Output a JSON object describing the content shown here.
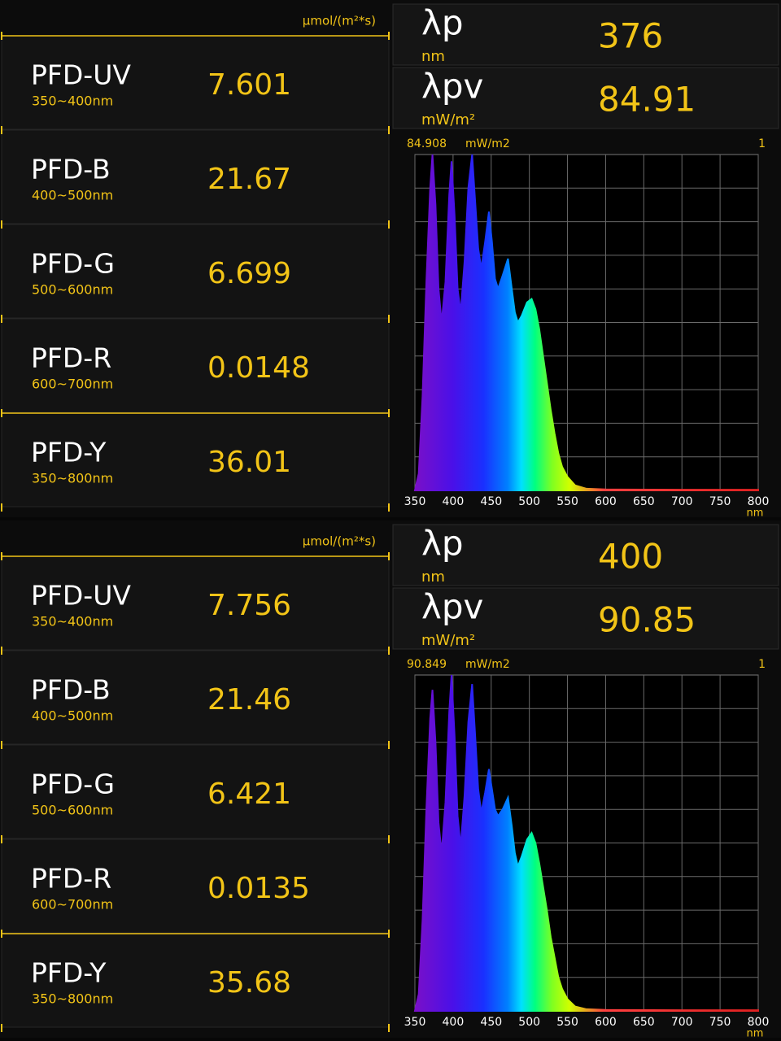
{
  "panels": [
    {
      "unit": "μmol/(m²*s)",
      "rows": [
        {
          "name": "PFD-UV",
          "range": "350~400nm",
          "value": 7.601
        },
        {
          "name": "PFD-B",
          "range": "400~500nm",
          "value": 21.67
        },
        {
          "name": "PFD-G",
          "range": "500~600nm",
          "value": 6.699
        },
        {
          "name": "PFD-R",
          "range": "600~700nm",
          "value": 0.0148
        },
        {
          "name": "PFD-Y",
          "range": "350~800nm",
          "value": 36.01
        }
      ],
      "peak_wavelength": {
        "label": "λp",
        "unit": "nm",
        "value": 376
      },
      "peak_value": {
        "label": "λpv",
        "unit": "mW/m²",
        "value": 84.91
      },
      "chart": {
        "type": "area",
        "peak_label": 84.908,
        "unit": "mW/m2",
        "x_unit": "nm",
        "x": [
          350,
          355,
          360,
          365,
          370,
          373,
          377,
          381,
          385,
          390,
          395,
          398,
          402,
          406,
          410,
          415,
          420,
          425,
          429,
          433,
          437,
          442,
          447,
          451,
          455,
          459,
          465,
          472,
          477,
          481,
          485,
          490,
          497,
          503,
          508,
          513,
          518,
          523,
          528,
          533,
          538,
          543,
          550,
          560,
          575,
          600,
          700,
          800
        ],
        "values": [
          0,
          0.05,
          0.28,
          0.62,
          0.9,
          1.0,
          0.85,
          0.6,
          0.5,
          0.62,
          0.88,
          0.98,
          0.82,
          0.6,
          0.53,
          0.68,
          0.9,
          1.0,
          0.86,
          0.72,
          0.66,
          0.74,
          0.83,
          0.74,
          0.63,
          0.6,
          0.64,
          0.69,
          0.6,
          0.53,
          0.5,
          0.52,
          0.56,
          0.57,
          0.54,
          0.48,
          0.4,
          0.32,
          0.24,
          0.17,
          0.11,
          0.07,
          0.04,
          0.015,
          0.005,
          0.003,
          0.002,
          0.002
        ],
        "xlim": [
          350,
          800
        ],
        "xticks": [
          350,
          400,
          450,
          500,
          550,
          600,
          650,
          700,
          750,
          800
        ],
        "ylim": [
          0,
          1
        ],
        "grid": true
      }
    },
    {
      "unit": "μmol/(m²*s)",
      "rows": [
        {
          "name": "PFD-UV",
          "range": "350~400nm",
          "value": 7.756
        },
        {
          "name": "PFD-B",
          "range": "400~500nm",
          "value": 21.46
        },
        {
          "name": "PFD-G",
          "range": "500~600nm",
          "value": 6.421
        },
        {
          "name": "PFD-R",
          "range": "600~700nm",
          "value": 0.0135
        },
        {
          "name": "PFD-Y",
          "range": "350~800nm",
          "value": 35.68
        }
      ],
      "peak_wavelength": {
        "label": "λp",
        "unit": "nm",
        "value": 400
      },
      "peak_value": {
        "label": "λpv",
        "unit": "mW/m²",
        "value": 90.85
      },
      "chart": {
        "type": "area",
        "peak_label": 90.849,
        "unit": "mW/m2",
        "x_unit": "nm",
        "x": [
          350,
          355,
          360,
          365,
          370,
          373,
          377,
          381,
          385,
          390,
          395,
          398,
          402,
          406,
          410,
          415,
          420,
          425,
          429,
          433,
          437,
          442,
          447,
          451,
          455,
          459,
          465,
          472,
          477,
          481,
          485,
          490,
          497,
          503,
          508,
          513,
          518,
          523,
          528,
          533,
          538,
          543,
          550,
          560,
          575,
          600,
          700,
          800
        ],
        "values": [
          0,
          0.05,
          0.27,
          0.6,
          0.87,
          0.956,
          0.8,
          0.56,
          0.47,
          0.62,
          0.89,
          1.0,
          0.82,
          0.58,
          0.49,
          0.64,
          0.86,
          0.973,
          0.82,
          0.66,
          0.59,
          0.65,
          0.72,
          0.66,
          0.6,
          0.58,
          0.6,
          0.635,
          0.55,
          0.47,
          0.43,
          0.46,
          0.51,
          0.53,
          0.5,
          0.44,
          0.37,
          0.3,
          0.22,
          0.16,
          0.1,
          0.065,
          0.035,
          0.013,
          0.005,
          0.003,
          0.002,
          0.002
        ],
        "xlim": [
          350,
          800
        ],
        "xticks": [
          350,
          400,
          450,
          500,
          550,
          600,
          650,
          700,
          750,
          800
        ],
        "ylim": [
          0,
          1
        ],
        "grid": true
      }
    }
  ]
}
